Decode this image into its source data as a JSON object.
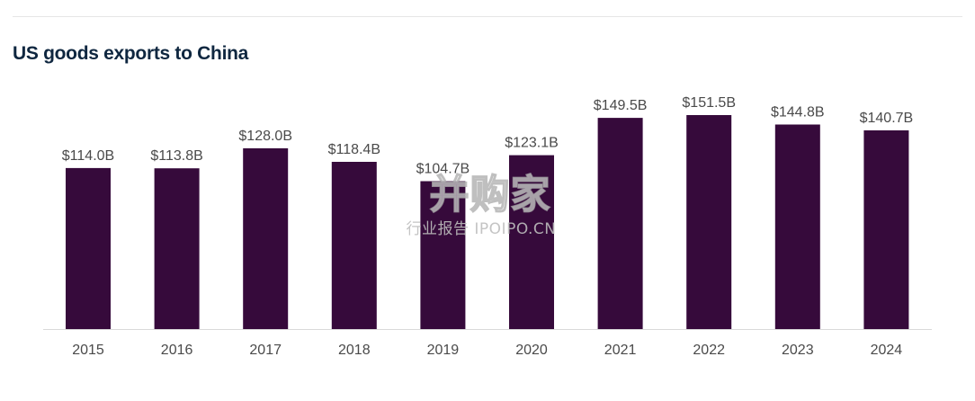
{
  "chart_data": {
    "type": "bar",
    "title": "US goods exports to China",
    "categories": [
      "2015",
      "2016",
      "2017",
      "2018",
      "2019",
      "2020",
      "2021",
      "2022",
      "2023",
      "2024"
    ],
    "values": [
      114.0,
      113.8,
      128.0,
      118.4,
      104.7,
      123.1,
      149.5,
      151.5,
      144.8,
      140.7
    ],
    "value_labels": [
      "$114.0B",
      "$113.8B",
      "$128.0B",
      "$118.4B",
      "$104.7B",
      "$123.1B",
      "$149.5B",
      "$151.5B",
      "$144.8B",
      "$140.7B"
    ],
    "unit": "billion USD",
    "xlabel": "",
    "ylabel": "",
    "ylim": [
      0,
      151.5
    ],
    "grid": false,
    "legend": "none",
    "bar_color": "#360a3b"
  },
  "watermark": {
    "main": "并购家",
    "sub": "行业报告 IPOIPO.CN"
  }
}
